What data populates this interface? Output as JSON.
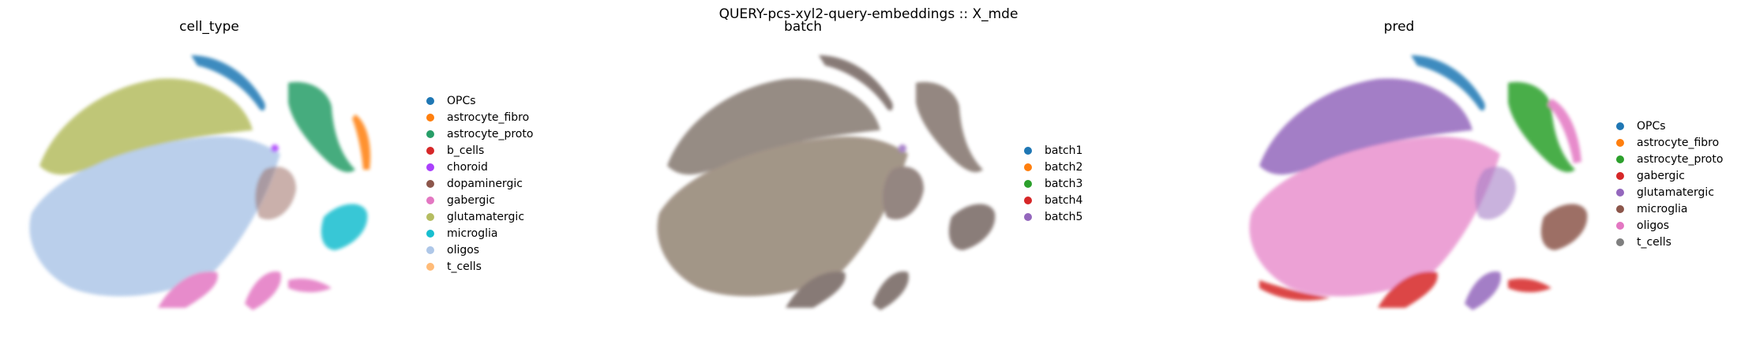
{
  "suptitle": "QUERY-pcs-xyl2-query-embeddings :: X_mde",
  "chart_data": [
    {
      "type": "scatter",
      "title": "cell_type",
      "legend_position": "right",
      "series": [
        {
          "name": "OPCs",
          "color": "#1f77b4"
        },
        {
          "name": "astrocyte_fibro",
          "color": "#ff7f0e"
        },
        {
          "name": "astrocyte_proto",
          "color": "#279e68"
        },
        {
          "name": "b_cells",
          "color": "#d62728"
        },
        {
          "name": "choroid",
          "color": "#aa40fc"
        },
        {
          "name": "dopaminergic",
          "color": "#8c564b"
        },
        {
          "name": "gabergic",
          "color": "#e377c2"
        },
        {
          "name": "glutamatergic",
          "color": "#b5bd61"
        },
        {
          "name": "microglia",
          "color": "#17becf"
        },
        {
          "name": "oligos",
          "color": "#aec7e8"
        },
        {
          "name": "t_cells",
          "color": "#ffbb78"
        }
      ]
    },
    {
      "type": "scatter",
      "title": "batch",
      "legend_position": "right",
      "series": [
        {
          "name": "batch1",
          "color": "#1f77b4"
        },
        {
          "name": "batch2",
          "color": "#ff7f0e"
        },
        {
          "name": "batch3",
          "color": "#2ca02c"
        },
        {
          "name": "batch4",
          "color": "#d62728"
        },
        {
          "name": "batch5",
          "color": "#9467bd"
        }
      ]
    },
    {
      "type": "scatter",
      "title": "pred",
      "legend_position": "right",
      "series": [
        {
          "name": "OPCs",
          "color": "#1f77b4"
        },
        {
          "name": "astrocyte_fibro",
          "color": "#ff7f0e"
        },
        {
          "name": "astrocyte_proto",
          "color": "#2ca02c"
        },
        {
          "name": "gabergic",
          "color": "#d62728"
        },
        {
          "name": "glutamatergic",
          "color": "#9467bd"
        },
        {
          "name": "microglia",
          "color": "#8c564b"
        },
        {
          "name": "oligos",
          "color": "#e377c2"
        },
        {
          "name": "t_cells",
          "color": "#7f7f7f"
        }
      ]
    }
  ]
}
